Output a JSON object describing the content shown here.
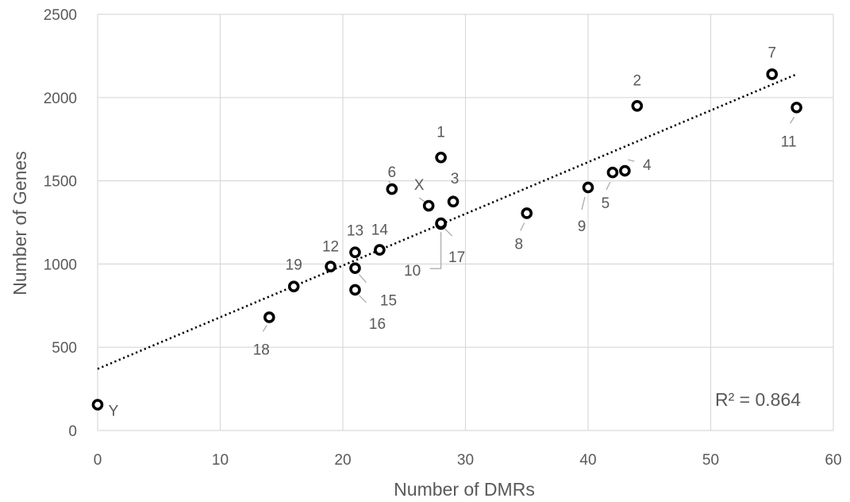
{
  "chart_data": {
    "type": "scatter",
    "xlabel": "Number of DMRs",
    "ylabel": "Number of Genes",
    "xlim": [
      0,
      60
    ],
    "ylim": [
      0,
      2500
    ],
    "x_ticks": [
      "0",
      "10",
      "20",
      "30",
      "40",
      "50",
      "60"
    ],
    "y_ticks": [
      "0",
      "500",
      "1000",
      "1500",
      "2000",
      "2500"
    ],
    "grid": true,
    "legend": "none",
    "annotation": "R² = 0.864",
    "trendline": {
      "type": "linear",
      "start": [
        0,
        370
      ],
      "end": [
        57,
        2140
      ],
      "style": "dotted",
      "color": "#000000"
    },
    "marker_color": "#000000",
    "points": [
      {
        "label": "1",
        "x": 28,
        "y": 1640
      },
      {
        "label": "2",
        "x": 44,
        "y": 1950
      },
      {
        "label": "3",
        "x": 29,
        "y": 1375
      },
      {
        "label": "4",
        "x": 43,
        "y": 1560
      },
      {
        "label": "5",
        "x": 42,
        "y": 1550
      },
      {
        "label": "6",
        "x": 24,
        "y": 1450
      },
      {
        "label": "7",
        "x": 55,
        "y": 2140
      },
      {
        "label": "8",
        "x": 35,
        "y": 1305
      },
      {
        "label": "9",
        "x": 40,
        "y": 1460
      },
      {
        "label": "10",
        "x": 28,
        "y": 1240
      },
      {
        "label": "11",
        "x": 57,
        "y": 1940
      },
      {
        "label": "12",
        "x": 19,
        "y": 985
      },
      {
        "label": "13",
        "x": 21,
        "y": 1070
      },
      {
        "label": "14",
        "x": 23,
        "y": 1085
      },
      {
        "label": "15",
        "x": 21,
        "y": 975
      },
      {
        "label": "16",
        "x": 21,
        "y": 845
      },
      {
        "label": "17",
        "x": 28,
        "y": 1245
      },
      {
        "label": "18",
        "x": 14,
        "y": 680
      },
      {
        "label": "19",
        "x": 16,
        "y": 865
      },
      {
        "label": "X",
        "x": 27,
        "y": 1350
      },
      {
        "label": "Y",
        "x": 0,
        "y": 155
      }
    ]
  }
}
